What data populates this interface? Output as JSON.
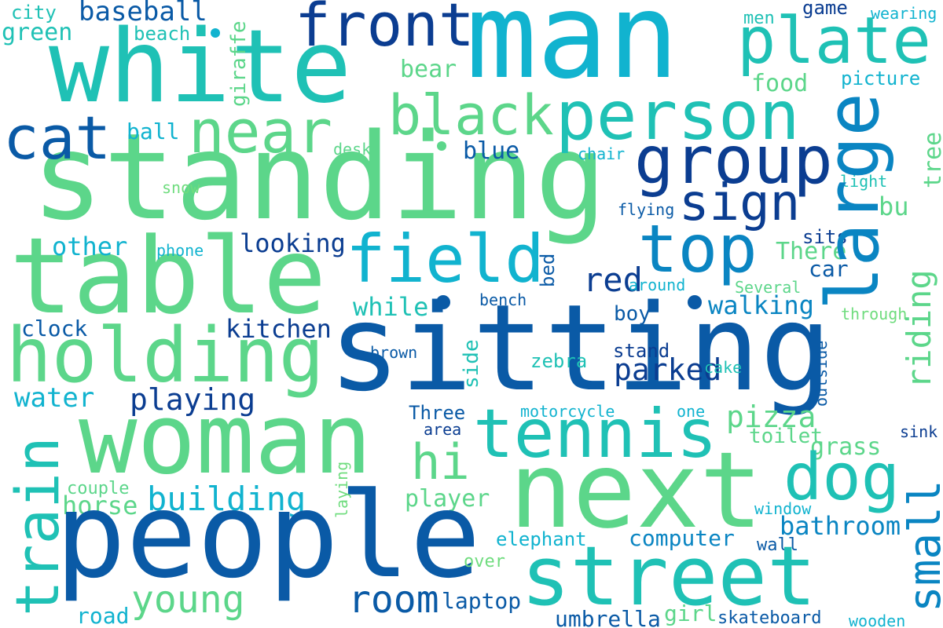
{
  "palette": {
    "dark_blue": "#0b3d91",
    "blue": "#0a5aa6",
    "cyan": "#11b3cf",
    "teal": "#1fc1b5",
    "green": "#5cd68a",
    "light_green": "#6fdc7e"
  },
  "words": [
    {
      "id": "man",
      "text": "man"
    },
    {
      "id": "white",
      "text": "white"
    },
    {
      "id": "front",
      "text": "front"
    },
    {
      "id": "plate",
      "text": "plate"
    },
    {
      "id": "baseball",
      "text": "baseball"
    },
    {
      "id": "city",
      "text": "city"
    },
    {
      "id": "green",
      "text": "green"
    },
    {
      "id": "beach",
      "text": "beach"
    },
    {
      "id": "giraffe",
      "text": "giraffe"
    },
    {
      "id": "game",
      "text": "game"
    },
    {
      "id": "men",
      "text": "men"
    },
    {
      "id": "wearing",
      "text": "wearing"
    },
    {
      "id": "standing",
      "text": "standing"
    },
    {
      "id": "cat",
      "text": "cat"
    },
    {
      "id": "near",
      "text": "near"
    },
    {
      "id": "black",
      "text": "black"
    },
    {
      "id": "person",
      "text": "person"
    },
    {
      "id": "bear",
      "text": "bear"
    },
    {
      "id": "food",
      "text": "food"
    },
    {
      "id": "picture",
      "text": "picture"
    },
    {
      "id": "large",
      "text": "large"
    },
    {
      "id": "group",
      "text": "group"
    },
    {
      "id": "ball",
      "text": "ball"
    },
    {
      "id": "desk",
      "text": "desk"
    },
    {
      "id": "blue",
      "text": "blue"
    },
    {
      "id": "chair",
      "text": "chair"
    },
    {
      "id": "tree",
      "text": "tree"
    },
    {
      "id": "light",
      "text": "light"
    },
    {
      "id": "snow",
      "text": "snow"
    },
    {
      "id": "sign",
      "text": "sign"
    },
    {
      "id": "bu",
      "text": "bu"
    },
    {
      "id": "flying",
      "text": "flying"
    },
    {
      "id": "table",
      "text": "table"
    },
    {
      "id": "field",
      "text": "field"
    },
    {
      "id": "top",
      "text": "top"
    },
    {
      "id": "other",
      "text": "other"
    },
    {
      "id": "phone",
      "text": "phone"
    },
    {
      "id": "looking",
      "text": "looking"
    },
    {
      "id": "bed",
      "text": "bed"
    },
    {
      "id": "sits",
      "text": "sits"
    },
    {
      "id": "there",
      "text": "There"
    },
    {
      "id": "car",
      "text": "car"
    },
    {
      "id": "red",
      "text": "red"
    },
    {
      "id": "around",
      "text": "around"
    },
    {
      "id": "several",
      "text": "Several"
    },
    {
      "id": "riding",
      "text": "riding"
    },
    {
      "id": "sitting",
      "text": "sitting"
    },
    {
      "id": "holding",
      "text": "holding"
    },
    {
      "id": "while",
      "text": "while"
    },
    {
      "id": "bench",
      "text": "bench"
    },
    {
      "id": "walking",
      "text": "walking"
    },
    {
      "id": "boy",
      "text": "boy"
    },
    {
      "id": "through",
      "text": "through"
    },
    {
      "id": "clock",
      "text": "clock"
    },
    {
      "id": "kitchen",
      "text": "kitchen"
    },
    {
      "id": "brown",
      "text": "brown"
    },
    {
      "id": "stand",
      "text": "stand"
    },
    {
      "id": "outside",
      "text": "outside"
    },
    {
      "id": "parked",
      "text": "parked"
    },
    {
      "id": "side",
      "text": "side"
    },
    {
      "id": "zebra",
      "text": "zebra"
    },
    {
      "id": "cake",
      "text": "cake"
    },
    {
      "id": "water",
      "text": "water"
    },
    {
      "id": "playing",
      "text": "playing"
    },
    {
      "id": "woman",
      "text": "woman"
    },
    {
      "id": "train",
      "text": "train"
    },
    {
      "id": "tennis",
      "text": "tennis"
    },
    {
      "id": "pizza",
      "text": "pizza"
    },
    {
      "id": "three",
      "text": "Three"
    },
    {
      "id": "motorcycle",
      "text": "motorcycle"
    },
    {
      "id": "one",
      "text": "one"
    },
    {
      "id": "sink",
      "text": "sink"
    },
    {
      "id": "area",
      "text": "area"
    },
    {
      "id": "toilet",
      "text": "toilet"
    },
    {
      "id": "grass",
      "text": "grass"
    },
    {
      "id": "hi",
      "text": "hi"
    },
    {
      "id": "dog",
      "text": "dog"
    },
    {
      "id": "small",
      "text": "small"
    },
    {
      "id": "next",
      "text": "next"
    },
    {
      "id": "building",
      "text": "building"
    },
    {
      "id": "couple",
      "text": "couple"
    },
    {
      "id": "horse",
      "text": "horse"
    },
    {
      "id": "laying",
      "text": "laying"
    },
    {
      "id": "player",
      "text": "player"
    },
    {
      "id": "window",
      "text": "window"
    },
    {
      "id": "bathroom",
      "text": "bathroom"
    },
    {
      "id": "people",
      "text": "people"
    },
    {
      "id": "elephant",
      "text": "elephant"
    },
    {
      "id": "computer",
      "text": "computer"
    },
    {
      "id": "over",
      "text": "over"
    },
    {
      "id": "wall",
      "text": "wall"
    },
    {
      "id": "young",
      "text": "young"
    },
    {
      "id": "room",
      "text": "room"
    },
    {
      "id": "street",
      "text": "street"
    },
    {
      "id": "laptop",
      "text": "laptop"
    },
    {
      "id": "road",
      "text": "road"
    },
    {
      "id": "umbrella",
      "text": "umbrella"
    },
    {
      "id": "girl",
      "text": "girl"
    },
    {
      "id": "skateboard",
      "text": "skateboard"
    },
    {
      "id": "wooden",
      "text": "wooden"
    }
  ]
}
